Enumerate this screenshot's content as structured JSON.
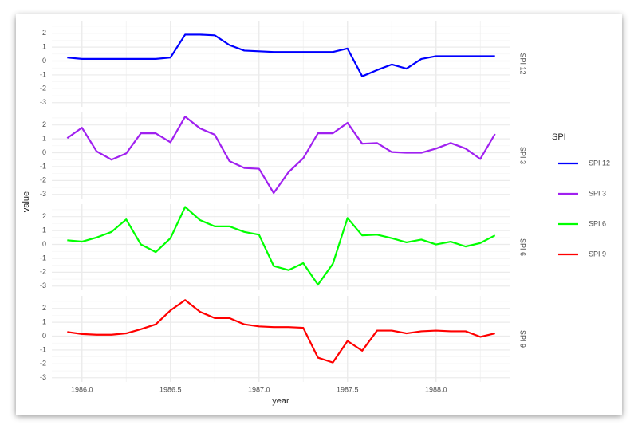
{
  "chart_data": {
    "type": "line",
    "facets": true,
    "x_label": "year",
    "y_label": "value",
    "legend_title": "SPI",
    "legend_position": "right",
    "grid": true,
    "x": [
      1985.917,
      1986,
      1986.083,
      1986.167,
      1986.25,
      1986.333,
      1986.417,
      1986.5,
      1986.583,
      1986.667,
      1986.75,
      1986.833,
      1986.917,
      1987,
      1987.083,
      1987.167,
      1987.25,
      1987.333,
      1987.417,
      1987.5,
      1987.583,
      1987.667,
      1987.75,
      1987.833,
      1987.917,
      1988,
      1988.083,
      1988.167,
      1988.25,
      1988.333
    ],
    "xlim": [
      1985.83,
      1988.42
    ],
    "xticks": [
      {
        "value": 1986,
        "label": "1986.0"
      },
      {
        "value": 1986.5,
        "label": "1986.5"
      },
      {
        "value": 1987,
        "label": "1987.0"
      },
      {
        "value": 1987.5,
        "label": "1987.5"
      },
      {
        "value": 1988,
        "label": "1988.0"
      }
    ],
    "xminor": [
      1986.25,
      1986.75,
      1987.25,
      1987.75,
      1988.25
    ],
    "ylim": [
      -3.3,
      2.9
    ],
    "yticks": [
      -3,
      -2,
      -1,
      0,
      1,
      2
    ],
    "yminor": [
      -2.5,
      -1.5,
      -0.5,
      0.5,
      1.5,
      2.5
    ],
    "series": [
      {
        "name": "SPI 12",
        "color": "#0000ff",
        "values": [
          0.25,
          0.15,
          0.15,
          0.15,
          0.15,
          0.15,
          0.15,
          0.25,
          1.9,
          1.9,
          1.85,
          1.15,
          0.75,
          0.7,
          0.65,
          0.65,
          0.65,
          0.65,
          0.65,
          0.9,
          -1.1,
          -0.65,
          -0.25,
          -0.55,
          0.15,
          0.35,
          0.35,
          0.35,
          0.35,
          0.35
        ]
      },
      {
        "name": "SPI 3",
        "color": "#a020f0",
        "values": [
          1.05,
          1.8,
          0.1,
          -0.5,
          -0.05,
          1.4,
          1.4,
          0.75,
          2.6,
          1.75,
          1.3,
          -0.6,
          -1.1,
          -1.15,
          -2.9,
          -1.4,
          -0.4,
          1.4,
          1.4,
          2.15,
          0.65,
          0.7,
          0.05,
          0,
          0,
          0.3,
          0.7,
          0.3,
          -0.45,
          1.35
        ]
      },
      {
        "name": "SPI 6",
        "color": "#00ff00",
        "values": [
          0.3,
          0.2,
          0.5,
          0.9,
          1.8,
          0,
          -0.55,
          0.45,
          2.7,
          1.75,
          1.3,
          1.3,
          0.9,
          0.7,
          -1.55,
          -1.85,
          -1.35,
          -2.9,
          -1.4,
          1.9,
          0.65,
          0.7,
          0.45,
          0.15,
          0.35,
          0,
          0.2,
          -0.15,
          0.1,
          0.65
        ]
      },
      {
        "name": "SPI 9",
        "color": "#ff0000",
        "values": [
          0.3,
          0.15,
          0.1,
          0.1,
          0.2,
          0.5,
          0.85,
          1.85,
          2.6,
          1.75,
          1.3,
          1.3,
          0.85,
          0.7,
          0.65,
          0.65,
          0.6,
          -1.55,
          -1.9,
          -0.35,
          -1.05,
          0.4,
          0.4,
          0.2,
          0.35,
          0.4,
          0.35,
          0.35,
          -0.05,
          0.2
        ]
      }
    ]
  }
}
